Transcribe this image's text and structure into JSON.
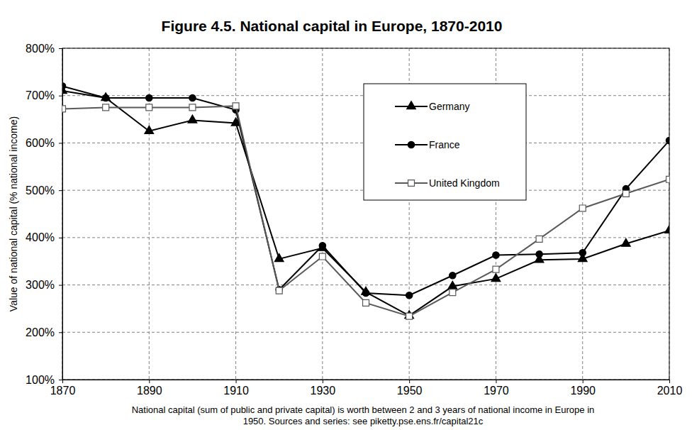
{
  "chart_data": {
    "type": "line",
    "title": "Figure 4.5. National capital in Europe, 1870-2010",
    "y_label": "Value of national capital (% national income)",
    "caption": [
      "National capital (sum of public and private capital) is worth between 2 and 3 years of national income in Europe in",
      "1950. Sources and series: see piketty.pse.ens.fr/capital21c"
    ],
    "x": [
      1870,
      1880,
      1890,
      1900,
      1910,
      1920,
      1930,
      1940,
      1950,
      1960,
      1970,
      1980,
      1990,
      2000,
      2010
    ],
    "series": [
      {
        "name": "Germany",
        "color": "#000000",
        "marker": "triangle",
        "line_style": "solid",
        "values": [
          710,
          695,
          625,
          648,
          642,
          355,
          378,
          285,
          235,
          297,
          313,
          353,
          355,
          387,
          415
        ]
      },
      {
        "name": "France",
        "color": "#000000",
        "marker": "circle",
        "line_style": "solid",
        "values": [
          720,
          695,
          695,
          695,
          670,
          290,
          383,
          283,
          278,
          320,
          363,
          365,
          368,
          503,
          605
        ]
      },
      {
        "name": "United Kingdom",
        "color": "#595959",
        "marker": "open-square",
        "line_style": "solid",
        "values": [
          672,
          675,
          675,
          675,
          678,
          288,
          360,
          262,
          234,
          284,
          333,
          397,
          462,
          493,
          523
        ]
      }
    ],
    "xlim": [
      1870,
      2010
    ],
    "xticks": [
      1870,
      1890,
      1910,
      1930,
      1950,
      1970,
      1990,
      2010
    ],
    "ylim": [
      100,
      800
    ],
    "yticks": [
      {
        "value": 100,
        "label": "100%"
      },
      {
        "value": 200,
        "label": "200%"
      },
      {
        "value": 300,
        "label": "300%"
      },
      {
        "value": 400,
        "label": "400%"
      },
      {
        "value": 500,
        "label": "500%"
      },
      {
        "value": 600,
        "label": "600%"
      },
      {
        "value": 700,
        "label": "700%"
      },
      {
        "value": 800,
        "label": "800%"
      }
    ],
    "grid": true,
    "legend": "top-right"
  }
}
